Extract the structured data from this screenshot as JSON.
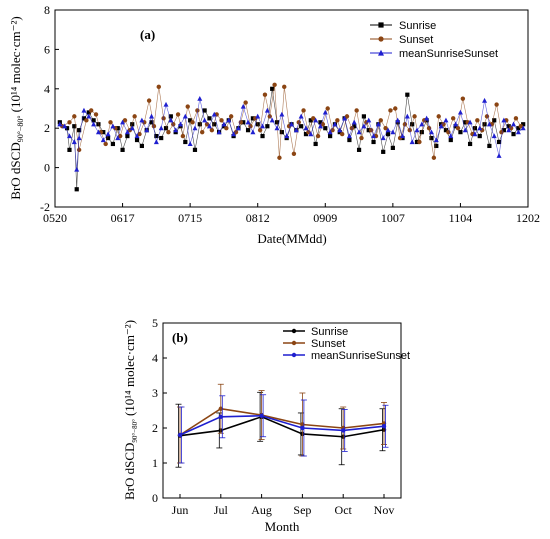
{
  "chart_data": [
    {
      "type": "line",
      "panel_label": "(a)",
      "xlabel": "Date(MMdd)",
      "ylabel_main": "BrO dSCD",
      "ylabel_sub": "90°−80°",
      "ylabel_unit": "(10¹⁴ molec·cm⁻²)",
      "xticks": [
        "0520",
        "0617",
        "0715",
        "0812",
        "0909",
        "1007",
        "1104",
        "1202"
      ],
      "xlim_days": [
        0,
        196
      ],
      "ylim": [
        -2,
        8
      ],
      "yticks": [
        "-2",
        "0",
        "2",
        "4",
        "6",
        "8"
      ],
      "legend_position": "top-right",
      "series": [
        {
          "name": "Sunrise",
          "color": "#000000",
          "marker": "square",
          "x": [
            2,
            5,
            6,
            8,
            9,
            10,
            12,
            14,
            16,
            18,
            20,
            22,
            24,
            26,
            28,
            30,
            32,
            34,
            36,
            38,
            40,
            42,
            44,
            46,
            48,
            50,
            52,
            54,
            56,
            58,
            60,
            62,
            64,
            66,
            68,
            70,
            72,
            74,
            76,
            78,
            80,
            82,
            84,
            86,
            88,
            90,
            92,
            94,
            96,
            98,
            100,
            102,
            104,
            106,
            108,
            110,
            112,
            114,
            116,
            118,
            120,
            122,
            124,
            126,
            128,
            130,
            132,
            134,
            136,
            138,
            140,
            142,
            144,
            146,
            148,
            150,
            152,
            154,
            156,
            158,
            160,
            162,
            164,
            166,
            168,
            170,
            172,
            174,
            176,
            178,
            180,
            182,
            184,
            186,
            188,
            190,
            192,
            194
          ],
          "y": [
            2.3,
            2.0,
            0.9,
            2.1,
            -1.1,
            1.9,
            2.5,
            2.8,
            2.4,
            2.2,
            1.8,
            1.5,
            1.2,
            2.0,
            0.9,
            1.6,
            2.2,
            1.4,
            1.1,
            1.9,
            2.3,
            1.6,
            1.5,
            2.0,
            2.6,
            1.8,
            2.1,
            1.3,
            2.4,
            0.9,
            2.2,
            2.9,
            2.5,
            2.2,
            1.8,
            2.1,
            2.4,
            1.6,
            2.0,
            2.3,
            1.9,
            2.5,
            2.2,
            1.6,
            2.1,
            4.0,
            2.3,
            1.8,
            1.5,
            2.2,
            1.9,
            2.1,
            1.7,
            2.4,
            1.2,
            2.3,
            2.0,
            1.6,
            2.2,
            1.8,
            2.5,
            1.4,
            2.1,
            0.9,
            2.6,
            1.9,
            1.3,
            2.2,
            0.8,
            1.7,
            1.0,
            2.3,
            1.5,
            3.7,
            2.2,
            1.3,
            1.8,
            2.4,
            1.5,
            1.1,
            2.2,
            1.9,
            1.4,
            2.1,
            1.8,
            2.3,
            1.2,
            2.0,
            1.6,
            2.2,
            1.1,
            2.4,
            1.3,
            1.9,
            2.1,
            1.7,
            2.0,
            2.2
          ]
        },
        {
          "name": "Sunset",
          "color": "#8b4513",
          "marker": "circle",
          "x": [
            3,
            6,
            8,
            10,
            13,
            15,
            17,
            19,
            21,
            23,
            25,
            27,
            29,
            31,
            33,
            35,
            37,
            39,
            41,
            43,
            45,
            47,
            49,
            51,
            53,
            55,
            57,
            59,
            61,
            63,
            65,
            67,
            69,
            71,
            73,
            75,
            77,
            79,
            81,
            83,
            85,
            87,
            89,
            91,
            93,
            95,
            97,
            99,
            101,
            103,
            105,
            107,
            109,
            111,
            113,
            115,
            117,
            119,
            121,
            123,
            125,
            127,
            129,
            131,
            133,
            135,
            137,
            139,
            141,
            143,
            145,
            147,
            149,
            151,
            153,
            155,
            157,
            159,
            161,
            163,
            165,
            167,
            169,
            171,
            173,
            175,
            177,
            179,
            181,
            183,
            185,
            187,
            189,
            191,
            193
          ],
          "y": [
            2.1,
            2.3,
            2.6,
            0.9,
            2.4,
            2.9,
            2.7,
            1.8,
            1.2,
            2.3,
            2.0,
            1.6,
            2.4,
            1.9,
            2.6,
            1.7,
            2.3,
            3.4,
            2.1,
            4.1,
            2.5,
            1.8,
            2.2,
            2.7,
            1.6,
            3.1,
            2.3,
            2.9,
            1.8,
            2.2,
            1.9,
            2.7,
            2.4,
            2.0,
            2.6,
            1.8,
            2.3,
            3.3,
            2.1,
            2.5,
            1.9,
            3.7,
            2.6,
            4.2,
            0.5,
            4.1,
            2.1,
            0.7,
            2.3,
            2.9,
            1.8,
            2.5,
            1.6,
            2.2,
            3.0,
            1.9,
            2.4,
            1.7,
            2.6,
            2.0,
            2.9,
            1.5,
            2.3,
            1.9,
            1.6,
            2.4,
            2.0,
            2.9,
            3.0,
            1.5,
            2.2,
            1.9,
            2.6,
            1.3,
            2.4,
            2.0,
            0.5,
            2.6,
            2.2,
            1.8,
            2.5,
            2.0,
            3.5,
            2.3,
            1.7,
            2.4,
            1.9,
            2.6,
            2.2,
            3.2,
            1.8,
            2.4,
            2.0,
            2.5,
            2.1
          ]
        },
        {
          "name": "meanSunriseSunset",
          "color": "#1f1fcf",
          "marker": "triangle",
          "x": [
            2,
            4,
            6,
            8,
            9,
            10,
            12,
            14,
            16,
            18,
            20,
            22,
            24,
            26,
            28,
            30,
            32,
            34,
            36,
            38,
            40,
            42,
            44,
            46,
            48,
            50,
            52,
            54,
            56,
            58,
            60,
            62,
            64,
            66,
            68,
            70,
            72,
            74,
            76,
            78,
            80,
            82,
            84,
            86,
            88,
            90,
            92,
            94,
            96,
            98,
            100,
            102,
            104,
            106,
            108,
            110,
            112,
            114,
            116,
            118,
            120,
            122,
            124,
            126,
            128,
            130,
            132,
            134,
            136,
            138,
            140,
            142,
            144,
            146,
            148,
            150,
            152,
            154,
            156,
            158,
            160,
            162,
            164,
            166,
            168,
            170,
            172,
            174,
            176,
            178,
            180,
            182,
            184,
            186,
            188,
            190,
            192,
            194
          ],
          "y": [
            2.2,
            2.1,
            1.6,
            1.3,
            -0.1,
            1.5,
            2.9,
            2.6,
            2.2,
            1.8,
            1.4,
            1.7,
            2.1,
            1.5,
            2.3,
            1.8,
            2.0,
            1.6,
            2.4,
            1.9,
            2.6,
            1.3,
            2.0,
            3.2,
            2.4,
            1.9,
            2.2,
            2.6,
            1.2,
            2.0,
            3.5,
            2.4,
            2.1,
            2.7,
            1.8,
            2.2,
            2.4,
            1.7,
            2.0,
            3.1,
            2.3,
            1.8,
            2.6,
            2.1,
            2.9,
            2.4,
            2.0,
            2.7,
            1.6,
            2.2,
            1.9,
            2.6,
            2.0,
            1.7,
            2.4,
            2.1,
            2.8,
            1.8,
            2.2,
            1.9,
            2.5,
            1.6,
            2.3,
            1.8,
            2.1,
            2.4,
            1.6,
            2.2,
            1.5,
            1.9,
            1.8,
            2.4,
            1.6,
            2.6,
            1.3,
            1.9,
            2.2,
            2.5,
            1.8,
            1.4,
            2.1,
            2.4,
            1.6,
            2.2,
            2.8,
            1.9,
            2.3,
            1.7,
            2.0,
            3.4,
            2.2,
            1.6,
            0.6,
            2.4,
            1.9,
            2.2,
            1.8,
            2.0
          ]
        }
      ]
    },
    {
      "type": "line",
      "panel_label": "(b)",
      "xlabel": "Month",
      "ylabel_main": "BrO dSCD",
      "ylabel_sub": "90°−80°",
      "ylabel_unit": "(10¹⁴ molec·cm⁻²)",
      "categories": [
        "Jun",
        "Jul",
        "Aug",
        "Sep",
        "Oct",
        "Nov"
      ],
      "ylim": [
        0,
        5
      ],
      "yticks": [
        "0",
        "1",
        "2",
        "3",
        "4",
        "5"
      ],
      "legend_position": "top-right",
      "series": [
        {
          "name": "Sunrise",
          "color": "#000000",
          "values": [
            1.78,
            1.93,
            2.32,
            1.83,
            1.75,
            1.95
          ],
          "errors": [
            0.9,
            0.5,
            0.7,
            0.6,
            0.8,
            0.6
          ]
        },
        {
          "name": "Sunset",
          "color": "#8b4513",
          "values": [
            1.8,
            2.55,
            2.37,
            2.1,
            2.0,
            2.13
          ],
          "errors": [
            0.8,
            0.7,
            0.7,
            0.9,
            0.6,
            0.6
          ]
        },
        {
          "name": "meanSunriseSunset",
          "color": "#1f1fcf",
          "values": [
            1.8,
            2.32,
            2.35,
            2.0,
            1.93,
            2.05
          ],
          "errors": [
            0.8,
            0.6,
            0.6,
            0.8,
            0.6,
            0.6
          ]
        }
      ]
    }
  ]
}
